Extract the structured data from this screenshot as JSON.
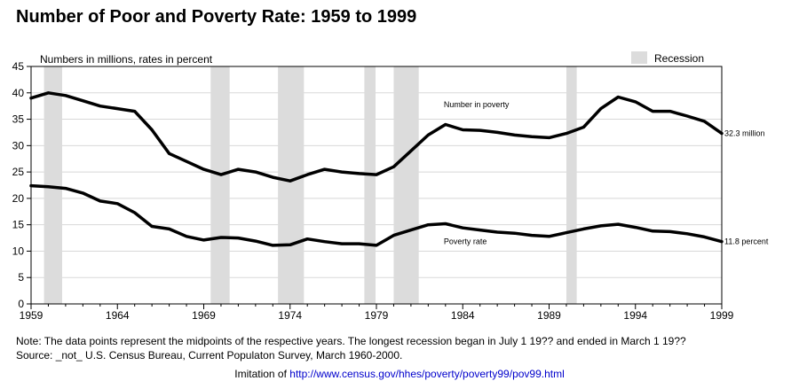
{
  "title": "Number of Poor and Poverty Rate: 1959 to 1999",
  "note": "Note:  The data points represent the midpoints of the respective years.  The longest recession began in July 1 19?? and ended in March 1 19??",
  "source": "Source:  _not_ U.S. Census Bureau, Current Populaton Survey, March 1960-2000.",
  "imitation_prefix": "Imitation of ",
  "imitation_link": "http://www.census.gov/hhes/poverty/poverty99/pov99.html",
  "colors": {
    "series": "#000000",
    "recession": "#dcdcdc",
    "grid": "#d8d8d8",
    "link": "#0000cc"
  },
  "chart_data": {
    "type": "line",
    "ylabel": "Numbers in millions, rates in percent",
    "xlim": [
      1959,
      1999
    ],
    "ylim": [
      0,
      45
    ],
    "xticks": [
      1959,
      1964,
      1969,
      1974,
      1979,
      1984,
      1989,
      1994,
      1999
    ],
    "yticks": [
      0,
      5,
      10,
      15,
      20,
      25,
      30,
      35,
      40,
      45
    ],
    "grid": true,
    "legend": {
      "label": "Recession",
      "placement": "top-right"
    },
    "recessions": [
      [
        1959.75,
        1960.8
      ],
      [
        1969.4,
        1970.5
      ],
      [
        1973.3,
        1974.8
      ],
      [
        1978.3,
        1978.95
      ],
      [
        1980.0,
        1981.45
      ],
      [
        1990.0,
        1990.6
      ]
    ],
    "series": [
      {
        "name": "Number in poverty",
        "end_label": "32.3 million",
        "x": [
          1959,
          1960,
          1961,
          1962,
          1963,
          1964,
          1965,
          1966,
          1967,
          1968,
          1969,
          1970,
          1971,
          1972,
          1973,
          1974,
          1975,
          1976,
          1977,
          1978,
          1979,
          1980,
          1981,
          1982,
          1983,
          1984,
          1985,
          1986,
          1987,
          1988,
          1989,
          1990,
          1991,
          1992,
          1993,
          1994,
          1995,
          1996,
          1997,
          1998,
          1999
        ],
        "values": [
          39.0,
          40.0,
          39.5,
          38.5,
          37.5,
          37.0,
          36.5,
          33.0,
          28.5,
          27.0,
          25.5,
          24.5,
          25.5,
          25.0,
          24.0,
          23.3,
          24.5,
          25.5,
          25.0,
          24.7,
          24.5,
          26.0,
          29.0,
          32.0,
          34.0,
          33.0,
          32.9,
          32.5,
          32.0,
          31.7,
          31.5,
          32.3,
          33.5,
          37.0,
          39.2,
          38.3,
          36.5,
          36.5,
          35.6,
          34.6,
          32.3
        ]
      },
      {
        "name": "Poverty rate",
        "end_label": "11.8 percent",
        "x": [
          1959,
          1960,
          1961,
          1962,
          1963,
          1964,
          1965,
          1966,
          1967,
          1968,
          1969,
          1970,
          1971,
          1972,
          1973,
          1974,
          1975,
          1976,
          1977,
          1978,
          1979,
          1980,
          1981,
          1982,
          1983,
          1984,
          1985,
          1986,
          1987,
          1988,
          1989,
          1990,
          1991,
          1992,
          1993,
          1994,
          1995,
          1996,
          1997,
          1998,
          1999
        ],
        "values": [
          22.4,
          22.2,
          21.9,
          21.0,
          19.5,
          19.0,
          17.3,
          14.7,
          14.2,
          12.8,
          12.1,
          12.6,
          12.5,
          11.9,
          11.1,
          11.2,
          12.3,
          11.8,
          11.4,
          11.4,
          11.1,
          13.0,
          14.0,
          15.0,
          15.2,
          14.4,
          14.0,
          13.6,
          13.4,
          13.0,
          12.8,
          13.5,
          14.2,
          14.8,
          15.1,
          14.5,
          13.8,
          13.7,
          13.3,
          12.7,
          11.8
        ]
      }
    ]
  }
}
